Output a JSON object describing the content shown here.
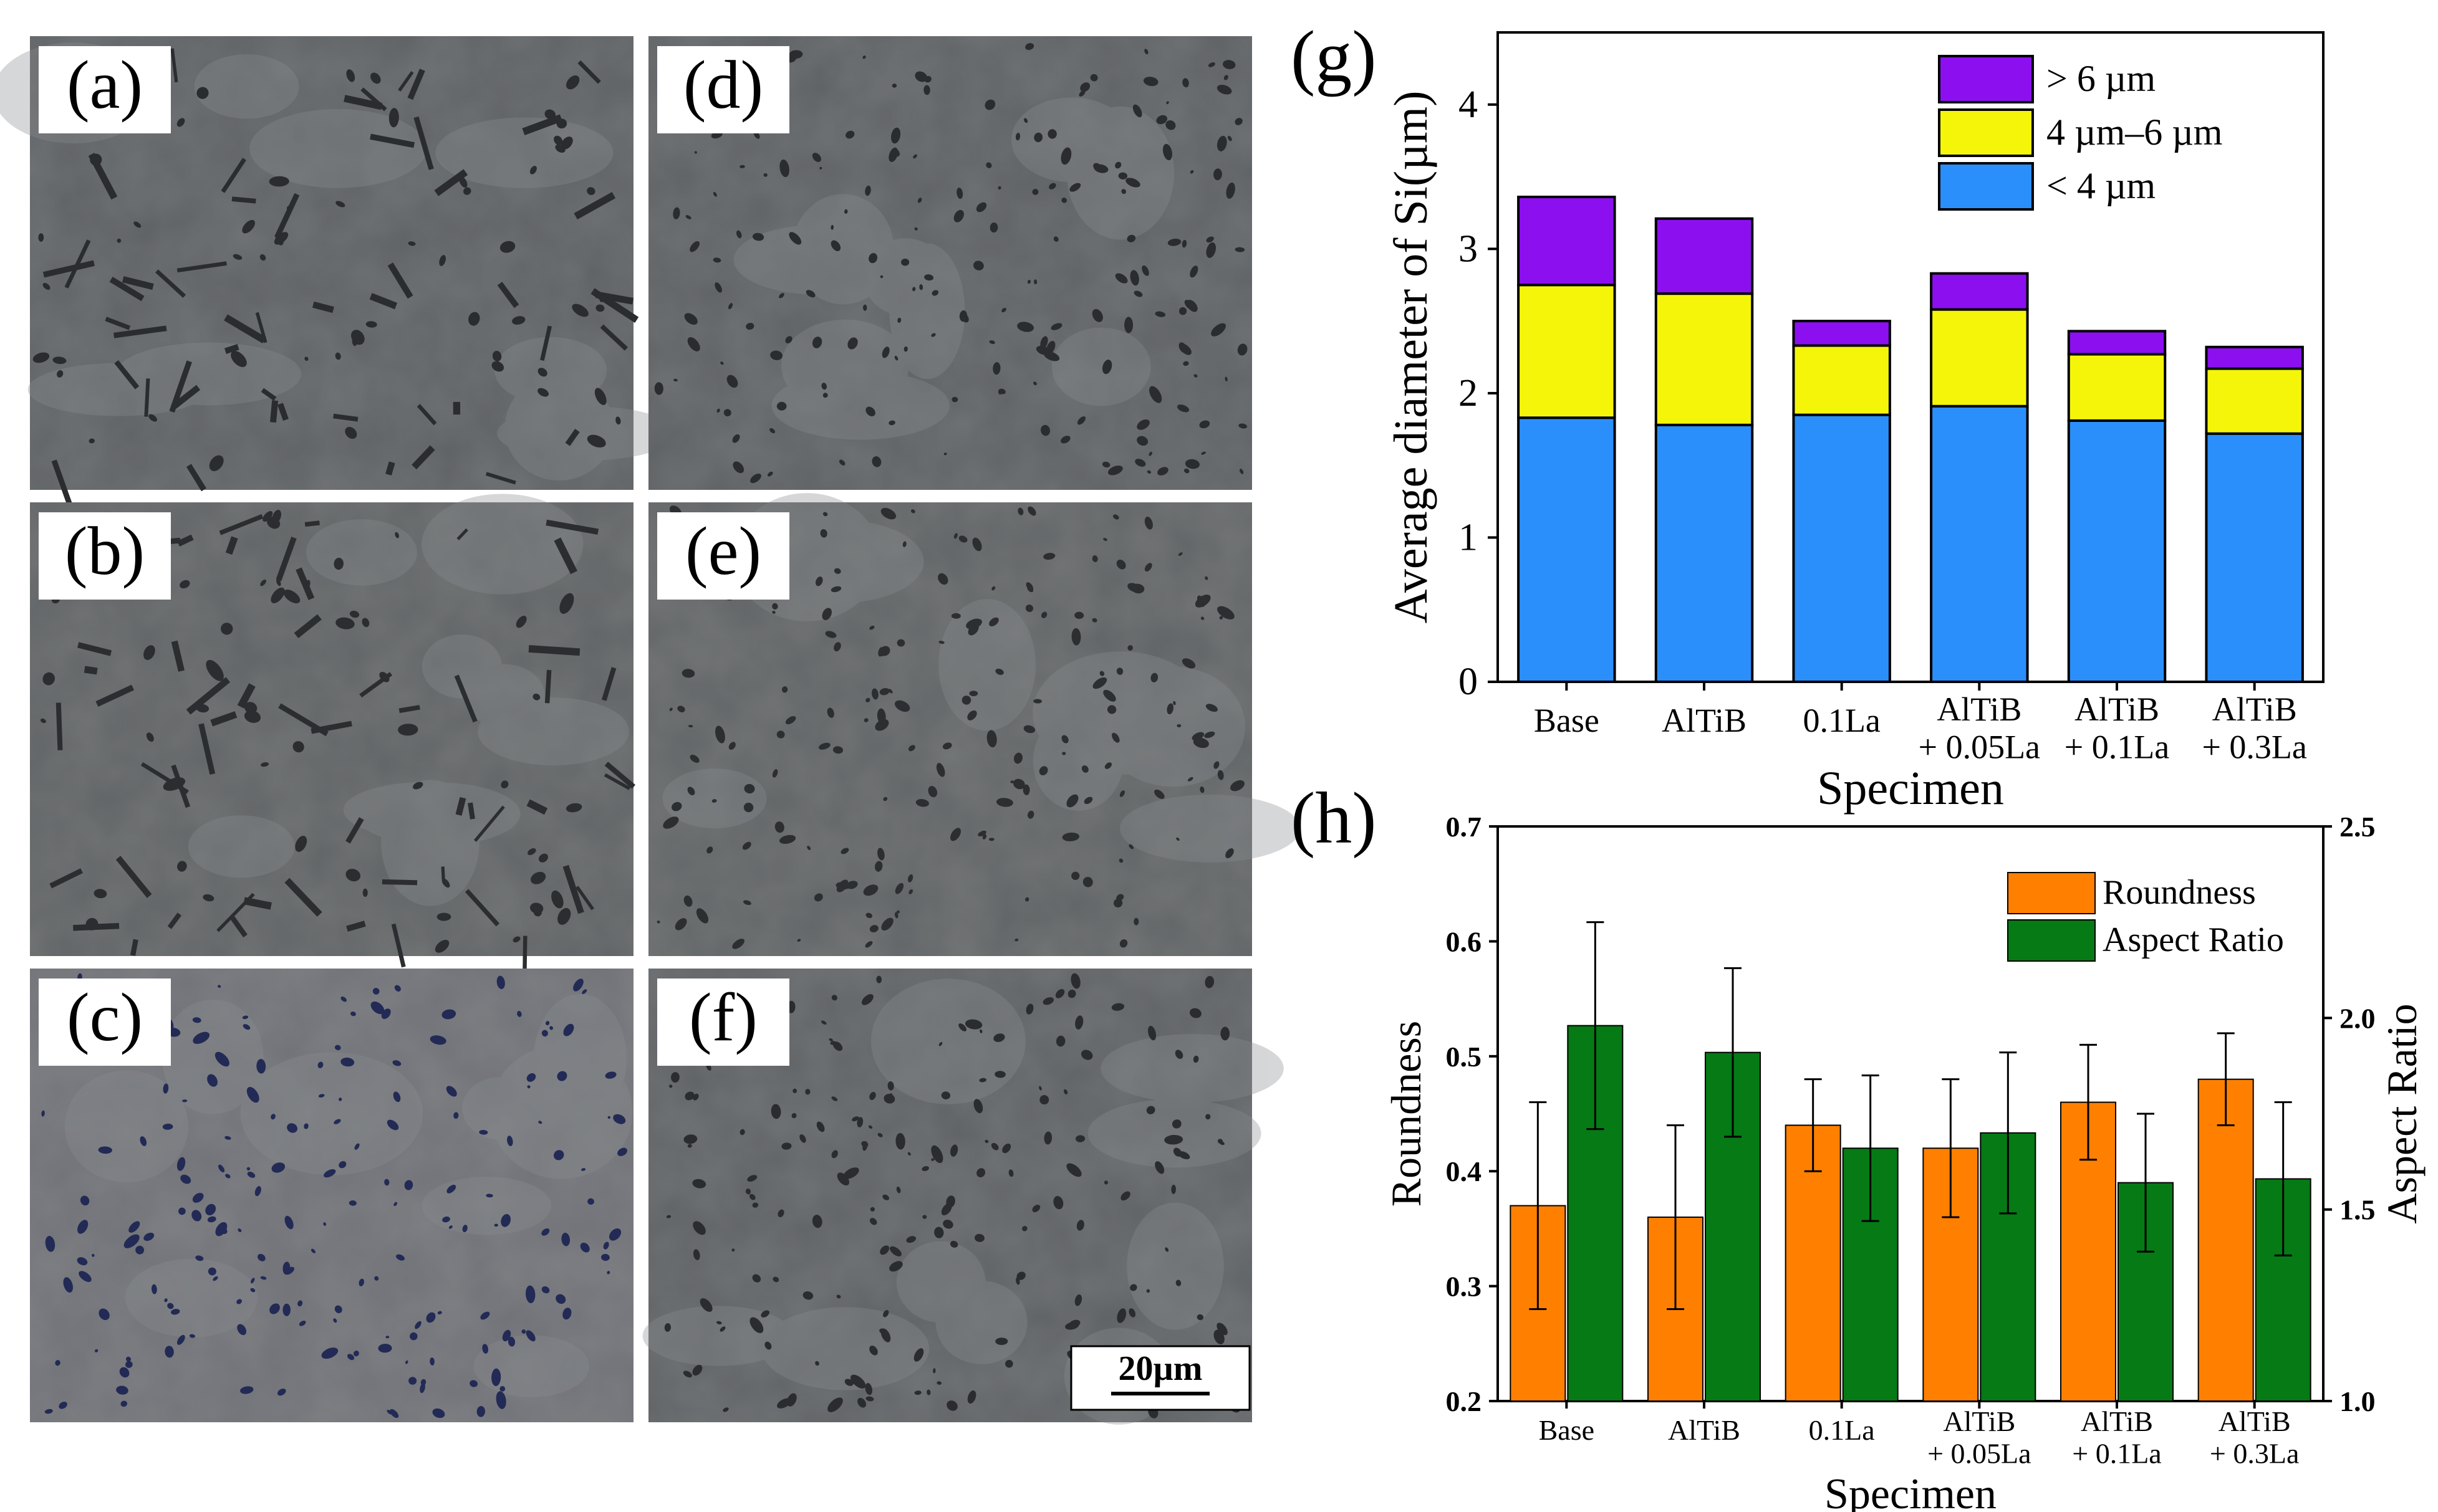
{
  "panels": [
    {
      "label": "(a)",
      "tone": "#5f6265",
      "phase": "#2a2c2f"
    },
    {
      "label": "(b)",
      "tone": "#616466",
      "phase": "#2b2d30"
    },
    {
      "label": "(c)",
      "tone": "#707277",
      "phase": "#222a55"
    },
    {
      "label": "(d)",
      "tone": "#5f6265",
      "phase": "#2a2c2f"
    },
    {
      "label": "(e)",
      "tone": "#626567",
      "phase": "#2c2e31"
    },
    {
      "label": "(f)",
      "tone": "#606366",
      "phase": "#2a2c30"
    }
  ],
  "scale_bar": {
    "label": "20µm"
  },
  "chart_data": [
    {
      "panel_label": "(g)",
      "type": "bar",
      "stacked": true,
      "title": "",
      "xlabel": "Specimen",
      "ylabel": "Average diameter of Si(µm)",
      "categories": [
        "Base",
        "AlTiB",
        "0.1La",
        "AlTiB\n+ 0.05La",
        "AlTiB\n+ 0.1La",
        "AlTiB\n+ 0.3La"
      ],
      "ylim": [
        0,
        4.5
      ],
      "yticks": [
        0,
        1,
        2,
        3,
        4
      ],
      "legend_position": "top-right",
      "series": [
        {
          "name": "< 4 µm",
          "color": "#2b8ffb",
          "values": [
            1.83,
            1.78,
            1.85,
            1.91,
            1.81,
            1.72
          ]
        },
        {
          "name": "4 µm–6 µm",
          "color": "#f5f50a",
          "values": [
            0.92,
            0.91,
            0.48,
            0.67,
            0.46,
            0.45
          ]
        },
        {
          "name": "> 6 µm",
          "color": "#8c0ff0",
          "values": [
            0.61,
            0.52,
            0.17,
            0.25,
            0.16,
            0.15
          ]
        }
      ],
      "legend_order": [
        "> 6 µm",
        "4 µm–6 µm",
        "< 4 µm"
      ]
    },
    {
      "panel_label": "(h)",
      "type": "bar",
      "title": "",
      "xlabel": "Specimen",
      "ylabel": "Roundness",
      "y2label": "Aspect Ratio",
      "categories": [
        "Base",
        "AlTiB",
        "0.1La",
        "AlTiB\n+ 0.05La",
        "AlTiB\n+ 0.1La",
        "AlTiB\n+ 0.3La"
      ],
      "ylim": [
        0.2,
        0.7
      ],
      "yticks": [
        0.2,
        0.3,
        0.4,
        0.5,
        0.6,
        0.7
      ],
      "y2lim": [
        1.0,
        2.5
      ],
      "y2ticks": [
        1.0,
        1.5,
        2.0,
        2.5
      ],
      "legend_position": "top-right",
      "series": [
        {
          "name": "Roundness",
          "axis": "left",
          "color": "#ff8000",
          "values": [
            0.37,
            0.36,
            0.44,
            0.42,
            0.46,
            0.48
          ],
          "errors": [
            0.09,
            0.08,
            0.04,
            0.06,
            0.05,
            0.04
          ]
        },
        {
          "name": "Aspect Ratio",
          "axis": "right",
          "color": "#057a15",
          "values": [
            1.98,
            1.91,
            1.66,
            1.7,
            1.57,
            1.58
          ],
          "errors": [
            0.27,
            0.22,
            0.19,
            0.21,
            0.18,
            0.2
          ]
        }
      ]
    }
  ]
}
